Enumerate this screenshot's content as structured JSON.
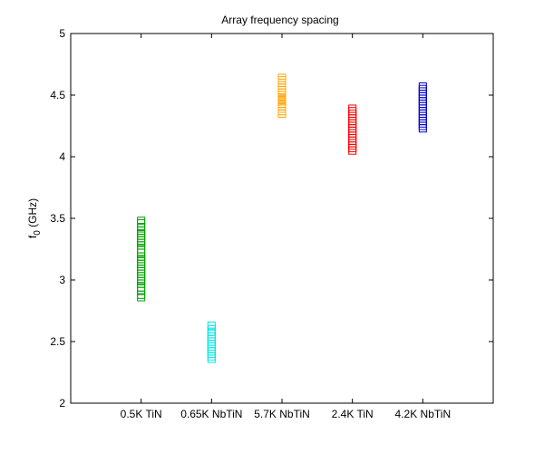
{
  "chart_data": {
    "type": "scatter",
    "title": "Array frequency spacing",
    "ylabel_main": "f",
    "ylabel_sub": "0",
    "ylabel_unit": " (GHz)",
    "ylim": [
      2,
      5
    ],
    "yticks": [
      2,
      2.5,
      3,
      3.5,
      4,
      4.5,
      5
    ],
    "grid": false,
    "marker": "square",
    "categories": [
      "0.5K TiN",
      "0.65K NbTiN",
      "5.7K NbTiN",
      "2.4K TiN",
      "4.2K NbTiN"
    ],
    "series": [
      {
        "color": "#00a000",
        "values": [
          2.86,
          2.88,
          2.91,
          2.94,
          2.97,
          2.99,
          3.01,
          3.03,
          3.05,
          3.07,
          3.09,
          3.11,
          3.13,
          3.15,
          3.17,
          3.19,
          3.22,
          3.25,
          3.28,
          3.3,
          3.32,
          3.34,
          3.36,
          3.38,
          3.4,
          3.43,
          3.46,
          3.48
        ]
      },
      {
        "color": "#00e5e5",
        "values": [
          2.36,
          2.38,
          2.4,
          2.42,
          2.44,
          2.46,
          2.48,
          2.5,
          2.52,
          2.54,
          2.56,
          2.58,
          2.6,
          2.63
        ]
      },
      {
        "color": "#ffa500",
        "values": [
          4.35,
          4.37,
          4.39,
          4.41,
          4.43,
          4.45,
          4.46,
          4.47,
          4.48,
          4.5,
          4.52,
          4.54,
          4.56,
          4.58,
          4.6,
          4.62,
          4.64
        ]
      },
      {
        "color": "#ff0000",
        "values": [
          4.05,
          4.07,
          4.09,
          4.11,
          4.13,
          4.15,
          4.17,
          4.19,
          4.21,
          4.23,
          4.25,
          4.27,
          4.29,
          4.31,
          4.33,
          4.35,
          4.37,
          4.39
        ]
      },
      {
        "color": "#0000cc",
        "values": [
          4.23,
          4.25,
          4.27,
          4.29,
          4.31,
          4.33,
          4.35,
          4.37,
          4.39,
          4.41,
          4.43,
          4.45,
          4.47,
          4.49,
          4.51,
          4.53,
          4.55,
          4.57
        ]
      }
    ]
  }
}
